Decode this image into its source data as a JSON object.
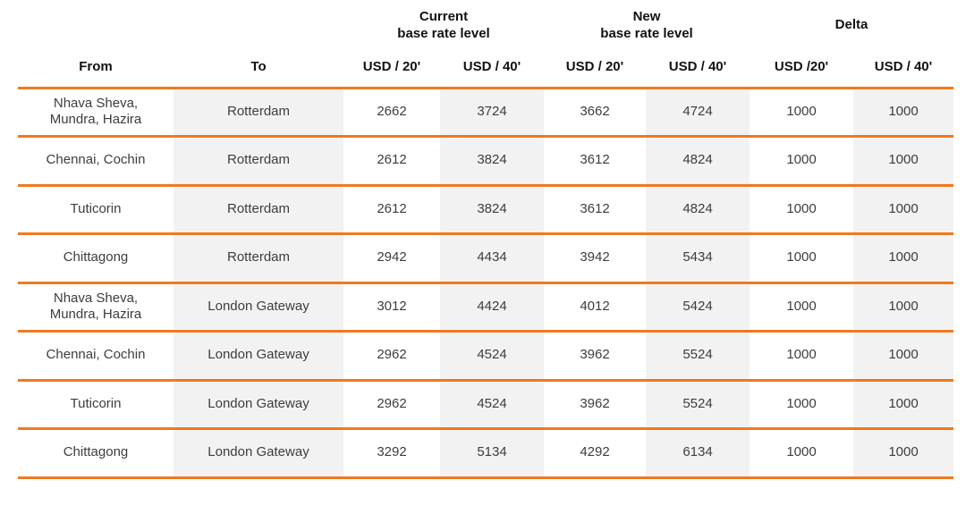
{
  "colors": {
    "accent_orange": "#F0791E",
    "shaded_column": "#F2F2F2",
    "text": "#3D3D3D",
    "header_text": "#111111"
  },
  "table": {
    "group_headers": [
      {
        "label": ""
      },
      {
        "label": "Current\nbase rate level"
      },
      {
        "label": "New\nbase rate level"
      },
      {
        "label": "Delta"
      }
    ],
    "column_headers": [
      "From",
      "To",
      "USD / 20'",
      "USD / 40'",
      "USD / 20'",
      "USD / 40'",
      "USD /20'",
      "USD / 40'"
    ],
    "rows": [
      {
        "cells": [
          "Nhava Sheva,\nMundra, Hazira",
          "Rotterdam",
          "2662",
          "3724",
          "3662",
          "4724",
          "1000",
          "1000"
        ]
      },
      {
        "cells": [
          "Chennai, Cochin",
          "Rotterdam",
          "2612",
          "3824",
          "3612",
          "4824",
          "1000",
          "1000"
        ]
      },
      {
        "cells": [
          "Tuticorin",
          "Rotterdam",
          "2612",
          "3824",
          "3612",
          "4824",
          "1000",
          "1000"
        ]
      },
      {
        "cells": [
          "Chittagong",
          "Rotterdam",
          "2942",
          "4434",
          "3942",
          "5434",
          "1000",
          "1000"
        ]
      },
      {
        "cells": [
          "Nhava Sheva,\nMundra, Hazira",
          "London Gateway",
          "3012",
          "4424",
          "4012",
          "5424",
          "1000",
          "1000"
        ]
      },
      {
        "cells": [
          "Chennai, Cochin",
          "London Gateway",
          "2962",
          "4524",
          "3962",
          "5524",
          "1000",
          "1000"
        ]
      },
      {
        "cells": [
          "Tuticorin",
          "London Gateway",
          "2962",
          "4524",
          "3962",
          "5524",
          "1000",
          "1000"
        ]
      },
      {
        "cells": [
          "Chittagong",
          "London Gateway",
          "3292",
          "5134",
          "4292",
          "6134",
          "1000",
          "1000"
        ]
      }
    ]
  }
}
